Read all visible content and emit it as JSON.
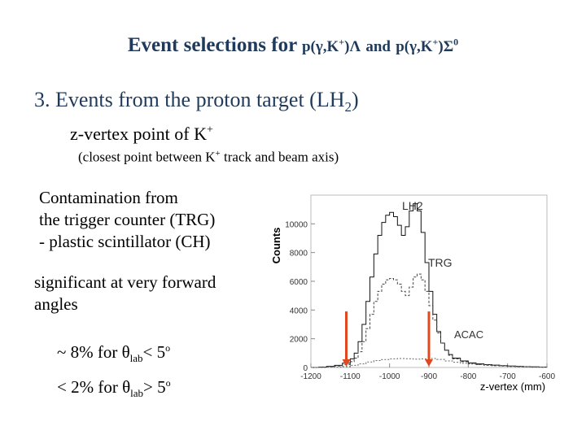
{
  "slide": {
    "title_main": "Event selections for",
    "title_reaction_1": "p(γ,K",
    "title_reaction_1_sup": "+",
    "title_reaction_1_end": ")Λ",
    "title_and": "and",
    "title_reaction_2": "p(γ,K",
    "title_reaction_2_sup": "+",
    "title_reaction_2_end": ")Σ",
    "title_reaction_2_sup2": "0",
    "heading_main": "3. Events from the proton target (LH",
    "heading_sub": "2",
    "heading_end": ")",
    "zvertex_main": "z-vertex point of K",
    "zvertex_sup": "+",
    "closest_main": "(closest point between K",
    "closest_sup": "+",
    "closest_end": " track  and beam axis)",
    "contam_line1": "Contamination from",
    "contam_line2": "the trigger counter (TRG)",
    "contam_line3": "-  plastic scintillator (CH)",
    "signif_line1": "significant at very forward",
    "signif_line2": "angles",
    "pct1_pre": "~ 8%   for θ",
    "pct1_sub": "lab",
    "pct1_mid": "< 5",
    "pct1_sup": "o",
    "pct2_pre": "< 2%   for θ",
    "pct2_sub": "lab",
    "pct2_mid": "> 5",
    "pct2_sup": "o"
  },
  "chart_data": {
    "type": "histogram",
    "ylabel": "Counts",
    "xlabel": "z-vertex (mm)",
    "xlim": [
      -1200,
      -600
    ],
    "ylim": [
      0,
      12000
    ],
    "y_ticks": [
      0,
      2000,
      4000,
      6000,
      8000,
      10000
    ],
    "y_tick_labels": [
      "0",
      "2000",
      "4000",
      "6000",
      "8000",
      "10000"
    ],
    "x_ticks": [
      -1200,
      -1100,
      -1000,
      -900,
      -800,
      -700,
      -600
    ],
    "x_tick_labels": [
      "-1200",
      "-1100",
      "-1000",
      "-900",
      "-800",
      "-700",
      "-600"
    ],
    "annotations": [
      "LH2",
      "TRG",
      "ACAC"
    ],
    "series": [
      {
        "x": [
          -1200,
          -1180,
          -1160,
          -1140,
          -1120,
          -1100,
          -1090,
          -1080,
          -1070,
          -1060,
          -1050,
          -1040,
          -1030,
          -1020,
          -1010,
          -1000,
          -990,
          -980,
          -970,
          -960,
          -950,
          -940,
          -930,
          -920,
          -910,
          -900,
          -890,
          -880,
          -870,
          -860,
          -850,
          -840,
          -820,
          -800,
          -780,
          -760,
          -740,
          -720,
          -700,
          -680,
          -660,
          -640,
          -620,
          -600
        ],
        "y": [
          0,
          30,
          80,
          150,
          300,
          600,
          1000,
          1800,
          3000,
          4600,
          6300,
          7900,
          9200,
          10100,
          10600,
          10800,
          10500,
          9900,
          9200,
          9800,
          10900,
          11400,
          10900,
          9400,
          7300,
          5300,
          3700,
          2500,
          1700,
          1200,
          900,
          650,
          450,
          320,
          250,
          200,
          160,
          130,
          100,
          80,
          60,
          40,
          30,
          20
        ]
      },
      {
        "x": [
          -1200,
          -1180,
          -1160,
          -1140,
          -1120,
          -1100,
          -1090,
          -1080,
          -1070,
          -1060,
          -1050,
          -1040,
          -1030,
          -1020,
          -1010,
          -1000,
          -990,
          -980,
          -970,
          -960,
          -950,
          -940,
          -930,
          -920,
          -910,
          -900,
          -890,
          -880,
          -870,
          -860,
          -850,
          -840,
          -820,
          -800,
          -780,
          -760,
          -740,
          -720,
          -700,
          -680,
          -660,
          -640,
          -620,
          -600
        ],
        "y": [
          0,
          20,
          50,
          100,
          200,
          400,
          650,
          1100,
          1800,
          2700,
          3700,
          4600,
          5300,
          5800,
          6100,
          6200,
          6100,
          5800,
          5300,
          5000,
          5600,
          6300,
          6500,
          6100,
          5300,
          4300,
          3300,
          2400,
          1700,
          1200,
          850,
          600,
          400,
          280,
          200,
          150,
          120,
          90,
          70,
          50,
          40,
          30,
          20,
          10
        ]
      },
      {
        "x": [
          -1200,
          -1160,
          -1120,
          -1100,
          -1080,
          -1060,
          -1040,
          -1020,
          -1000,
          -980,
          -960,
          -940,
          -920,
          -900,
          -880,
          -860,
          -840,
          -820,
          -800,
          -780,
          -760,
          -740,
          -720,
          -700,
          -680,
          -660,
          -640,
          -620,
          -600
        ],
        "y": [
          0,
          20,
          60,
          150,
          250,
          380,
          480,
          550,
          600,
          620,
          610,
          580,
          600,
          620,
          560,
          450,
          360,
          290,
          240,
          200,
          170,
          140,
          120,
          100,
          80,
          60,
          40,
          30,
          20
        ]
      }
    ],
    "markers": [
      {
        "x": -1110,
        "y": 3900
      },
      {
        "x": -900,
        "y": 3900
      }
    ]
  }
}
